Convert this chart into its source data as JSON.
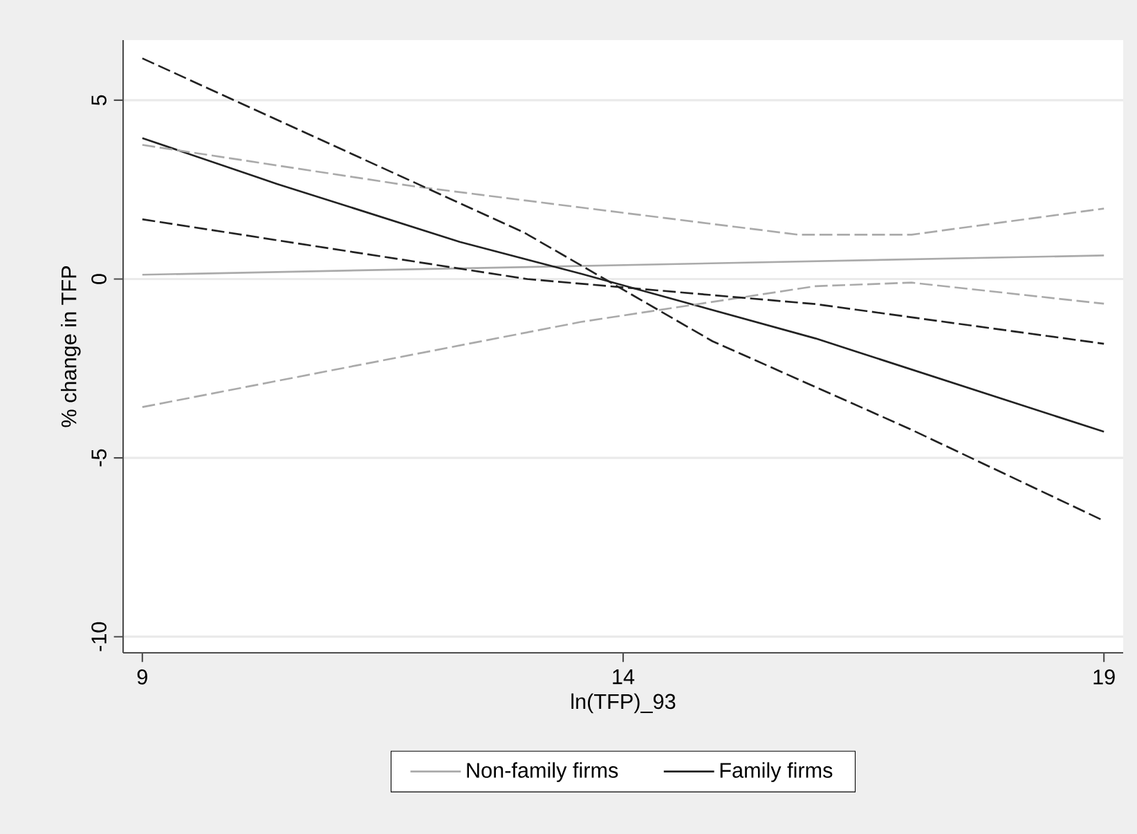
{
  "chart_data": {
    "type": "line",
    "xlabel": "ln(TFP)_93",
    "ylabel": "% change in TFP",
    "xlim": [
      8.8,
      19.2
    ],
    "ylim": [
      -10.45,
      6.68
    ],
    "xticks": [
      9,
      14,
      19
    ],
    "yticks": [
      -10,
      -5,
      0,
      5
    ],
    "grid": "y",
    "legend": "bottom",
    "series": [
      {
        "name": "Non-family firms",
        "color": "#aaaaaa",
        "line_style": "solid",
        "x": [
          9,
          19
        ],
        "values": [
          0.12,
          0.66
        ]
      },
      {
        "name": "Family firms",
        "color": "#222222",
        "line_style": "solid",
        "x": [
          9,
          10.4,
          12.3,
          13.56,
          16,
          19
        ],
        "values": [
          3.94,
          2.66,
          1.04,
          0.15,
          -1.66,
          -4.27
        ]
      },
      {
        "color": "#aaaaaa",
        "line_style": "dashed",
        "x": [
          9,
          11.83,
          13.56,
          15.82,
          17,
          19
        ],
        "values": [
          3.75,
          2.59,
          2.0,
          1.24,
          1.24,
          1.97
        ]
      },
      {
        "color": "#aaaaaa",
        "line_style": "dashed",
        "x": [
          9,
          13.56,
          16,
          17,
          19
        ],
        "values": [
          -3.58,
          -1.2,
          -0.2,
          -0.1,
          -0.69
        ]
      },
      {
        "color": "#222222",
        "line_style": "dashed",
        "x": [
          9,
          12.97,
          14.93,
          16.98,
          19
        ],
        "values": [
          6.17,
          1.3,
          -1.74,
          -4.19,
          -6.76
        ]
      },
      {
        "color": "#222222",
        "line_style": "dashed",
        "x": [
          9,
          13,
          16,
          19
        ],
        "values": [
          1.67,
          0.0,
          -0.7,
          -1.81
        ]
      }
    ]
  }
}
